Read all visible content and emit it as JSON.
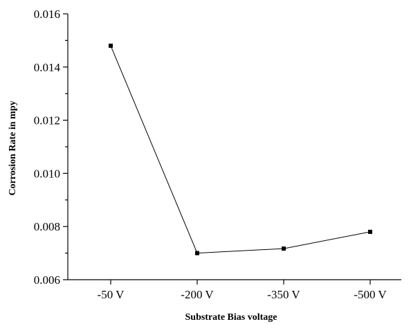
{
  "chart_data": {
    "type": "line",
    "categories": [
      "-50 V",
      "-200 V",
      "-350 V",
      "-500 V"
    ],
    "series": [
      {
        "values": [
          0.0148,
          0.007,
          0.00717,
          0.0078
        ]
      }
    ],
    "xlabel": "Substrate Bias voltage",
    "ylabel": "Corrosion Rate in mpy",
    "ylim": [
      0.006,
      0.016
    ],
    "yticks": [
      "0.006",
      "0.008",
      "0.010",
      "0.012",
      "0.014",
      "0.016"
    ],
    "grid": false,
    "marker": "square",
    "line_color": "#000000"
  }
}
